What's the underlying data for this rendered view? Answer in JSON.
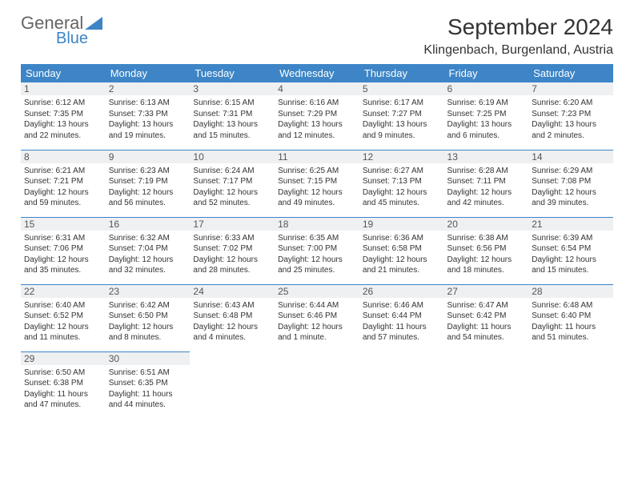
{
  "logo": {
    "top": "General",
    "bottom": "Blue"
  },
  "title": "September 2024",
  "location": "Klingenbach, Burgenland, Austria",
  "header_row": [
    "Sunday",
    "Monday",
    "Tuesday",
    "Wednesday",
    "Thursday",
    "Friday",
    "Saturday"
  ],
  "colors": {
    "accent": "#3d85c6",
    "header_text": "#ffffff",
    "daynum_bg": "#eef0f2",
    "text": "#333333",
    "logo_gray": "#666666"
  },
  "weeks": [
    [
      {
        "day": "1",
        "sunrise": "Sunrise: 6:12 AM",
        "sunset": "Sunset: 7:35 PM",
        "daylight1": "Daylight: 13 hours",
        "daylight2": "and 22 minutes."
      },
      {
        "day": "2",
        "sunrise": "Sunrise: 6:13 AM",
        "sunset": "Sunset: 7:33 PM",
        "daylight1": "Daylight: 13 hours",
        "daylight2": "and 19 minutes."
      },
      {
        "day": "3",
        "sunrise": "Sunrise: 6:15 AM",
        "sunset": "Sunset: 7:31 PM",
        "daylight1": "Daylight: 13 hours",
        "daylight2": "and 15 minutes."
      },
      {
        "day": "4",
        "sunrise": "Sunrise: 6:16 AM",
        "sunset": "Sunset: 7:29 PM",
        "daylight1": "Daylight: 13 hours",
        "daylight2": "and 12 minutes."
      },
      {
        "day": "5",
        "sunrise": "Sunrise: 6:17 AM",
        "sunset": "Sunset: 7:27 PM",
        "daylight1": "Daylight: 13 hours",
        "daylight2": "and 9 minutes."
      },
      {
        "day": "6",
        "sunrise": "Sunrise: 6:19 AM",
        "sunset": "Sunset: 7:25 PM",
        "daylight1": "Daylight: 13 hours",
        "daylight2": "and 6 minutes."
      },
      {
        "day": "7",
        "sunrise": "Sunrise: 6:20 AM",
        "sunset": "Sunset: 7:23 PM",
        "daylight1": "Daylight: 13 hours",
        "daylight2": "and 2 minutes."
      }
    ],
    [
      {
        "day": "8",
        "sunrise": "Sunrise: 6:21 AM",
        "sunset": "Sunset: 7:21 PM",
        "daylight1": "Daylight: 12 hours",
        "daylight2": "and 59 minutes."
      },
      {
        "day": "9",
        "sunrise": "Sunrise: 6:23 AM",
        "sunset": "Sunset: 7:19 PM",
        "daylight1": "Daylight: 12 hours",
        "daylight2": "and 56 minutes."
      },
      {
        "day": "10",
        "sunrise": "Sunrise: 6:24 AM",
        "sunset": "Sunset: 7:17 PM",
        "daylight1": "Daylight: 12 hours",
        "daylight2": "and 52 minutes."
      },
      {
        "day": "11",
        "sunrise": "Sunrise: 6:25 AM",
        "sunset": "Sunset: 7:15 PM",
        "daylight1": "Daylight: 12 hours",
        "daylight2": "and 49 minutes."
      },
      {
        "day": "12",
        "sunrise": "Sunrise: 6:27 AM",
        "sunset": "Sunset: 7:13 PM",
        "daylight1": "Daylight: 12 hours",
        "daylight2": "and 45 minutes."
      },
      {
        "day": "13",
        "sunrise": "Sunrise: 6:28 AM",
        "sunset": "Sunset: 7:11 PM",
        "daylight1": "Daylight: 12 hours",
        "daylight2": "and 42 minutes."
      },
      {
        "day": "14",
        "sunrise": "Sunrise: 6:29 AM",
        "sunset": "Sunset: 7:08 PM",
        "daylight1": "Daylight: 12 hours",
        "daylight2": "and 39 minutes."
      }
    ],
    [
      {
        "day": "15",
        "sunrise": "Sunrise: 6:31 AM",
        "sunset": "Sunset: 7:06 PM",
        "daylight1": "Daylight: 12 hours",
        "daylight2": "and 35 minutes."
      },
      {
        "day": "16",
        "sunrise": "Sunrise: 6:32 AM",
        "sunset": "Sunset: 7:04 PM",
        "daylight1": "Daylight: 12 hours",
        "daylight2": "and 32 minutes."
      },
      {
        "day": "17",
        "sunrise": "Sunrise: 6:33 AM",
        "sunset": "Sunset: 7:02 PM",
        "daylight1": "Daylight: 12 hours",
        "daylight2": "and 28 minutes."
      },
      {
        "day": "18",
        "sunrise": "Sunrise: 6:35 AM",
        "sunset": "Sunset: 7:00 PM",
        "daylight1": "Daylight: 12 hours",
        "daylight2": "and 25 minutes."
      },
      {
        "day": "19",
        "sunrise": "Sunrise: 6:36 AM",
        "sunset": "Sunset: 6:58 PM",
        "daylight1": "Daylight: 12 hours",
        "daylight2": "and 21 minutes."
      },
      {
        "day": "20",
        "sunrise": "Sunrise: 6:38 AM",
        "sunset": "Sunset: 6:56 PM",
        "daylight1": "Daylight: 12 hours",
        "daylight2": "and 18 minutes."
      },
      {
        "day": "21",
        "sunrise": "Sunrise: 6:39 AM",
        "sunset": "Sunset: 6:54 PM",
        "daylight1": "Daylight: 12 hours",
        "daylight2": "and 15 minutes."
      }
    ],
    [
      {
        "day": "22",
        "sunrise": "Sunrise: 6:40 AM",
        "sunset": "Sunset: 6:52 PM",
        "daylight1": "Daylight: 12 hours",
        "daylight2": "and 11 minutes."
      },
      {
        "day": "23",
        "sunrise": "Sunrise: 6:42 AM",
        "sunset": "Sunset: 6:50 PM",
        "daylight1": "Daylight: 12 hours",
        "daylight2": "and 8 minutes."
      },
      {
        "day": "24",
        "sunrise": "Sunrise: 6:43 AM",
        "sunset": "Sunset: 6:48 PM",
        "daylight1": "Daylight: 12 hours",
        "daylight2": "and 4 minutes."
      },
      {
        "day": "25",
        "sunrise": "Sunrise: 6:44 AM",
        "sunset": "Sunset: 6:46 PM",
        "daylight1": "Daylight: 12 hours",
        "daylight2": "and 1 minute."
      },
      {
        "day": "26",
        "sunrise": "Sunrise: 6:46 AM",
        "sunset": "Sunset: 6:44 PM",
        "daylight1": "Daylight: 11 hours",
        "daylight2": "and 57 minutes."
      },
      {
        "day": "27",
        "sunrise": "Sunrise: 6:47 AM",
        "sunset": "Sunset: 6:42 PM",
        "daylight1": "Daylight: 11 hours",
        "daylight2": "and 54 minutes."
      },
      {
        "day": "28",
        "sunrise": "Sunrise: 6:48 AM",
        "sunset": "Sunset: 6:40 PM",
        "daylight1": "Daylight: 11 hours",
        "daylight2": "and 51 minutes."
      }
    ],
    [
      {
        "day": "29",
        "sunrise": "Sunrise: 6:50 AM",
        "sunset": "Sunset: 6:38 PM",
        "daylight1": "Daylight: 11 hours",
        "daylight2": "and 47 minutes."
      },
      {
        "day": "30",
        "sunrise": "Sunrise: 6:51 AM",
        "sunset": "Sunset: 6:35 PM",
        "daylight1": "Daylight: 11 hours",
        "daylight2": "and 44 minutes."
      },
      null,
      null,
      null,
      null,
      null
    ]
  ]
}
